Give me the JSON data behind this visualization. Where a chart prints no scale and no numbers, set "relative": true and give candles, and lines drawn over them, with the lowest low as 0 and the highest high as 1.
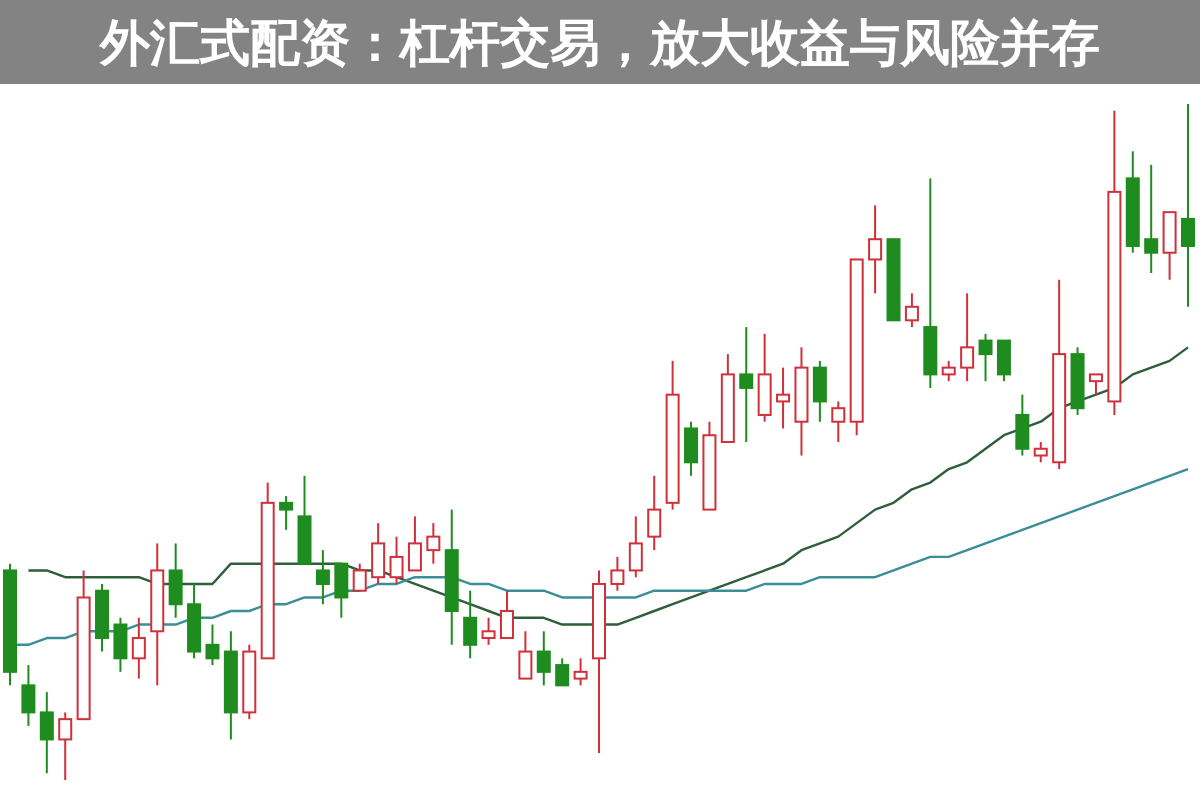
{
  "chart_data": {
    "type": "candlestick",
    "title": "外汇式配资：杠杆交易，放大收益与风险并存",
    "relative": true,
    "categories": [
      null,
      null,
      null,
      null,
      null,
      null,
      null,
      null,
      null,
      null,
      null,
      null,
      null,
      null,
      null,
      null,
      null,
      null,
      null,
      null,
      null,
      null,
      null,
      null,
      null,
      null,
      null,
      null,
      null,
      null,
      null,
      null,
      null,
      null,
      null,
      null,
      null,
      null,
      null,
      null,
      null,
      null,
      null,
      null,
      null,
      null,
      null,
      null,
      null,
      null,
      null,
      null,
      null,
      null,
      null,
      null,
      null,
      null,
      null,
      null,
      null,
      null,
      null,
      null,
      null
    ],
    "ohlc": [
      [
        0.31,
        0.32,
        0.14,
        0.16
      ],
      [
        0.14,
        0.17,
        0.08,
        0.1
      ],
      [
        0.1,
        0.13,
        0.01,
        0.06
      ],
      [
        0.06,
        0.1,
        0,
        0.09
      ],
      [
        0.09,
        0.31,
        0.09,
        0.27
      ],
      [
        0.28,
        0.29,
        0.19,
        0.21
      ],
      [
        0.23,
        0.24,
        0.16,
        0.18
      ],
      [
        0.18,
        0.24,
        0.15,
        0.21
      ],
      [
        0.22,
        0.35,
        0.14,
        0.31
      ],
      [
        0.31,
        0.35,
        0.24,
        0.26
      ],
      [
        0.26,
        0.29,
        0.18,
        0.19
      ],
      [
        0.2,
        0.23,
        0.17,
        0.18
      ],
      [
        0.19,
        0.22,
        0.06,
        0.1
      ],
      [
        0.1,
        0.2,
        0.09,
        0.19
      ],
      [
        0.18,
        0.44,
        0.18,
        0.41
      ],
      [
        0.41,
        0.42,
        0.37,
        0.4
      ],
      [
        0.39,
        0.45,
        0.32,
        0.32
      ],
      [
        0.31,
        0.34,
        0.26,
        0.29
      ],
      [
        0.32,
        0.32,
        0.24,
        0.27
      ],
      [
        0.28,
        0.32,
        0.28,
        0.31
      ],
      [
        0.3,
        0.38,
        0.29,
        0.35
      ],
      [
        0.3,
        0.36,
        0.29,
        0.33
      ],
      [
        0.31,
        0.39,
        0.31,
        0.35
      ],
      [
        0.34,
        0.38,
        0.32,
        0.36
      ],
      [
        0.34,
        0.4,
        0.2,
        0.25
      ],
      [
        0.24,
        0.28,
        0.18,
        0.2
      ],
      [
        0.21,
        0.24,
        0.2,
        0.22
      ],
      [
        0.21,
        0.28,
        0.21,
        0.25
      ],
      [
        0.15,
        0.22,
        0.15,
        0.19
      ],
      [
        0.19,
        0.22,
        0.14,
        0.16
      ],
      [
        0.17,
        0.18,
        0.14,
        0.14
      ],
      [
        0.15,
        0.18,
        0.14,
        0.16
      ],
      [
        0.18,
        0.31,
        0.04,
        0.29
      ],
      [
        0.29,
        0.33,
        0.28,
        0.31
      ],
      [
        0.31,
        0.39,
        0.3,
        0.35
      ],
      [
        0.36,
        0.45,
        0.34,
        0.4
      ],
      [
        0.41,
        0.62,
        0.4,
        0.57
      ],
      [
        0.52,
        0.53,
        0.45,
        0.47
      ],
      [
        0.4,
        0.53,
        0.4,
        0.51
      ],
      [
        0.5,
        0.63,
        0.5,
        0.6
      ],
      [
        0.6,
        0.67,
        0.5,
        0.58
      ],
      [
        0.54,
        0.66,
        0.53,
        0.6
      ],
      [
        0.56,
        0.61,
        0.52,
        0.57
      ],
      [
        0.53,
        0.64,
        0.48,
        0.61
      ],
      [
        0.61,
        0.62,
        0.53,
        0.56
      ],
      [
        0.53,
        0.56,
        0.5,
        0.55
      ],
      [
        0.53,
        0.77,
        0.51,
        0.77
      ],
      [
        0.77,
        0.85,
        0.72,
        0.8
      ],
      [
        0.8,
        0.8,
        0.68,
        0.68
      ],
      [
        0.68,
        0.72,
        0.67,
        0.7
      ],
      [
        0.67,
        0.89,
        0.58,
        0.6
      ],
      [
        0.6,
        0.62,
        0.59,
        0.61
      ],
      [
        0.61,
        0.72,
        0.59,
        0.64
      ],
      [
        0.65,
        0.66,
        0.59,
        0.63
      ],
      [
        0.65,
        0.65,
        0.59,
        0.6
      ],
      [
        0.54,
        0.57,
        0.48,
        0.49
      ],
      [
        0.48,
        0.5,
        0.47,
        0.49
      ],
      [
        0.47,
        0.74,
        0.46,
        0.63
      ],
      [
        0.63,
        0.64,
        0.54,
        0.55
      ],
      [
        0.59,
        0.6,
        0.57,
        0.6
      ],
      [
        0.56,
        0.99,
        0.54,
        0.87
      ],
      [
        0.89,
        0.93,
        0.78,
        0.79
      ],
      [
        0.8,
        0.91,
        0.75,
        0.78
      ],
      [
        0.78,
        0.84,
        0.74,
        0.84
      ],
      [
        0.83,
        1,
        0.7,
        0.79
      ]
    ],
    "series": [
      {
        "type": "line",
        "color": "#2f5e3a",
        "values": [
          null,
          0.31,
          0.31,
          0.3,
          0.3,
          0.3,
          0.3,
          0.3,
          0.29,
          0.29,
          0.29,
          0.29,
          0.32,
          0.32,
          0.32,
          0.32,
          0.32,
          0.32,
          0.32,
          0.31,
          0.31,
          0.3,
          0.29,
          0.28,
          0.27,
          0.26,
          0.25,
          0.24,
          0.24,
          0.24,
          0.23,
          0.23,
          0.23,
          0.23,
          0.24,
          0.25,
          0.26,
          0.27,
          0.28,
          0.29,
          0.3,
          0.31,
          0.32,
          0.34,
          0.35,
          0.36,
          0.38,
          0.4,
          0.41,
          0.43,
          0.44,
          0.46,
          0.47,
          0.49,
          0.51,
          0.52,
          0.53,
          0.55,
          0.56,
          0.57,
          0.58,
          0.6,
          0.61,
          0.62,
          0.64
        ]
      },
      {
        "type": "line",
        "color": "#3a8f96",
        "values": [
          0.2,
          0.2,
          0.21,
          0.21,
          0.22,
          0.22,
          0.22,
          0.23,
          0.23,
          0.23,
          0.24,
          0.24,
          0.25,
          0.25,
          0.26,
          0.26,
          0.27,
          0.27,
          0.28,
          0.28,
          0.29,
          0.29,
          0.3,
          0.3,
          0.3,
          0.29,
          0.29,
          0.28,
          0.28,
          0.28,
          0.27,
          0.27,
          0.27,
          0.27,
          0.27,
          0.28,
          0.28,
          0.28,
          0.28,
          0.28,
          0.28,
          0.29,
          0.29,
          0.29,
          0.3,
          0.3,
          0.3,
          0.3,
          0.31,
          0.32,
          0.33,
          0.33,
          0.34,
          0.35,
          0.36,
          0.37,
          0.38,
          0.39,
          0.4,
          0.41,
          0.42,
          0.43,
          0.44,
          0.45,
          0.46
        ]
      }
    ]
  }
}
